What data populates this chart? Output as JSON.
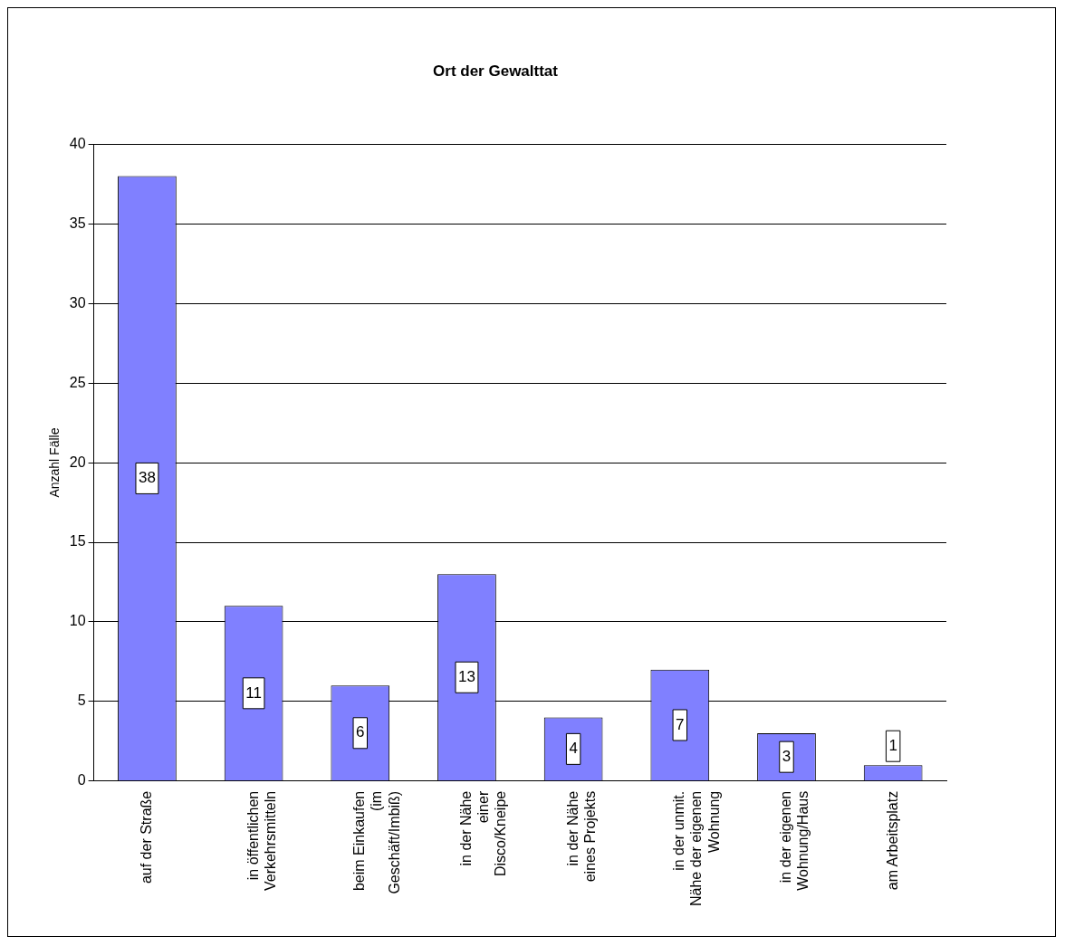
{
  "chart_data": {
    "type": "bar",
    "title": "Ort der Gewalttat",
    "ylabel": "Anzahl Fälle",
    "categories": [
      "auf der Straße",
      "in öffentlichen Verkehrsmitteln",
      "beim Einkaufen (im Geschäft/Imbiß)",
      "in der Nähe einer Disco/Kneipe",
      "in der Nähe eines Projekts",
      "in der unmit. Nähe der eigenen Wohnung",
      "in der eigenen Wohnung/Haus",
      "am Arbeitsplatz"
    ],
    "values": [
      38,
      11,
      6,
      13,
      4,
      7,
      3,
      1
    ],
    "color": "#8080ff",
    "ylim": [
      0,
      40
    ],
    "yticks": [
      0,
      5,
      10,
      15,
      20,
      25,
      30,
      35,
      40
    ],
    "grid": "y",
    "legend": false,
    "data_labels": true
  }
}
